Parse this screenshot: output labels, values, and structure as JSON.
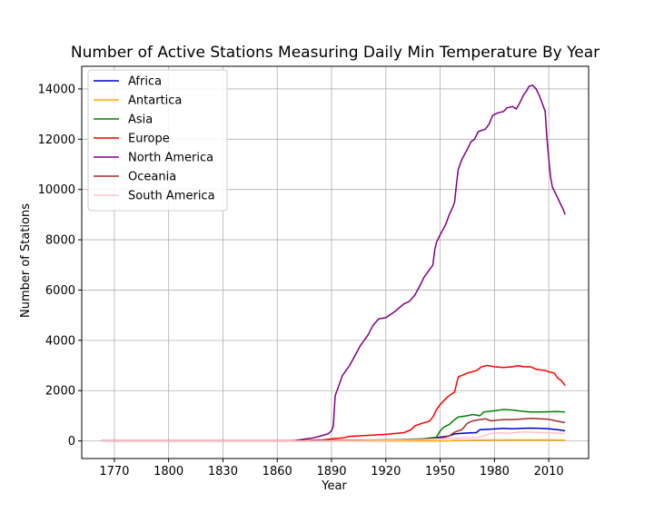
{
  "chart_data": {
    "type": "line",
    "title": "Number of Active Stations Measuring Daily Min Temperature By Year",
    "xlabel": "Year",
    "ylabel": "Number of Stations",
    "xlim": [
      1752,
      2032
    ],
    "ylim": [
      -700,
      14900
    ],
    "xticks": [
      1770,
      1800,
      1830,
      1860,
      1890,
      1920,
      1950,
      1980,
      2010
    ],
    "yticks": [
      0,
      2000,
      4000,
      6000,
      8000,
      10000,
      12000,
      14000
    ],
    "grid": true,
    "legend_position": "upper-left",
    "series": [
      {
        "name": "Africa",
        "color": "#0000cc",
        "points": [
          [
            1763,
            0
          ],
          [
            1870,
            0
          ],
          [
            1890,
            10
          ],
          [
            1920,
            30
          ],
          [
            1940,
            60
          ],
          [
            1945,
            100
          ],
          [
            1950,
            150
          ],
          [
            1955,
            200
          ],
          [
            1958,
            280
          ],
          [
            1962,
            300
          ],
          [
            1966,
            320
          ],
          [
            1970,
            330
          ],
          [
            1972,
            450
          ],
          [
            1978,
            470
          ],
          [
            1985,
            500
          ],
          [
            1990,
            480
          ],
          [
            1995,
            500
          ],
          [
            2000,
            510
          ],
          [
            2005,
            500
          ],
          [
            2010,
            480
          ],
          [
            2015,
            450
          ],
          [
            2019,
            400
          ]
        ]
      },
      {
        "name": "Antartica",
        "color": "#ffa500",
        "points": [
          [
            1763,
            0
          ],
          [
            1955,
            0
          ],
          [
            1957,
            20
          ],
          [
            1970,
            30
          ],
          [
            1980,
            35
          ],
          [
            1990,
            40
          ],
          [
            2000,
            40
          ],
          [
            2010,
            40
          ],
          [
            2019,
            30
          ]
        ]
      },
      {
        "name": "Asia",
        "color": "#008000",
        "points": [
          [
            1763,
            0
          ],
          [
            1880,
            0
          ],
          [
            1900,
            20
          ],
          [
            1920,
            40
          ],
          [
            1940,
            80
          ],
          [
            1948,
            150
          ],
          [
            1950,
            400
          ],
          [
            1952,
            550
          ],
          [
            1955,
            650
          ],
          [
            1958,
            850
          ],
          [
            1960,
            950
          ],
          [
            1965,
            1000
          ],
          [
            1968,
            1050
          ],
          [
            1972,
            1000
          ],
          [
            1974,
            1150
          ],
          [
            1980,
            1200
          ],
          [
            1985,
            1250
          ],
          [
            1990,
            1230
          ],
          [
            1995,
            1180
          ],
          [
            2000,
            1150
          ],
          [
            2005,
            1150
          ],
          [
            2010,
            1160
          ],
          [
            2015,
            1170
          ],
          [
            2019,
            1150
          ]
        ]
      },
      {
        "name": "Europe",
        "color": "#ff0000",
        "points": [
          [
            1763,
            0
          ],
          [
            1870,
            0
          ],
          [
            1885,
            40
          ],
          [
            1890,
            80
          ],
          [
            1896,
            120
          ],
          [
            1900,
            180
          ],
          [
            1910,
            220
          ],
          [
            1920,
            260
          ],
          [
            1930,
            330
          ],
          [
            1934,
            450
          ],
          [
            1936,
            600
          ],
          [
            1940,
            700
          ],
          [
            1944,
            780
          ],
          [
            1946,
            950
          ],
          [
            1948,
            1250
          ],
          [
            1950,
            1450
          ],
          [
            1952,
            1600
          ],
          [
            1954,
            1750
          ],
          [
            1956,
            1850
          ],
          [
            1958,
            1950
          ],
          [
            1960,
            2550
          ],
          [
            1962,
            2600
          ],
          [
            1965,
            2700
          ],
          [
            1970,
            2800
          ],
          [
            1973,
            2950
          ],
          [
            1976,
            3000
          ],
          [
            1980,
            2950
          ],
          [
            1985,
            2920
          ],
          [
            1990,
            2950
          ],
          [
            1993,
            2990
          ],
          [
            1996,
            2950
          ],
          [
            2000,
            2950
          ],
          [
            2003,
            2850
          ],
          [
            2006,
            2820
          ],
          [
            2008,
            2800
          ],
          [
            2010,
            2750
          ],
          [
            2013,
            2700
          ],
          [
            2015,
            2500
          ],
          [
            2017,
            2400
          ],
          [
            2019,
            2200
          ]
        ]
      },
      {
        "name": "North America",
        "color": "#800080",
        "points": [
          [
            1763,
            0
          ],
          [
            1868,
            0
          ],
          [
            1872,
            40
          ],
          [
            1876,
            80
          ],
          [
            1880,
            120
          ],
          [
            1884,
            200
          ],
          [
            1888,
            280
          ],
          [
            1890,
            400
          ],
          [
            1891,
            600
          ],
          [
            1892,
            1800
          ],
          [
            1894,
            2200
          ],
          [
            1896,
            2600
          ],
          [
            1900,
            3000
          ],
          [
            1903,
            3400
          ],
          [
            1906,
            3800
          ],
          [
            1910,
            4200
          ],
          [
            1913,
            4600
          ],
          [
            1916,
            4850
          ],
          [
            1920,
            4900
          ],
          [
            1925,
            5150
          ],
          [
            1930,
            5450
          ],
          [
            1933,
            5550
          ],
          [
            1936,
            5800
          ],
          [
            1939,
            6200
          ],
          [
            1941,
            6500
          ],
          [
            1944,
            6800
          ],
          [
            1946,
            7000
          ],
          [
            1947,
            7600
          ],
          [
            1948,
            7900
          ],
          [
            1950,
            8200
          ],
          [
            1953,
            8600
          ],
          [
            1955,
            9000
          ],
          [
            1957,
            9300
          ],
          [
            1958,
            9500
          ],
          [
            1959,
            10200
          ],
          [
            1960,
            10800
          ],
          [
            1962,
            11200
          ],
          [
            1965,
            11600
          ],
          [
            1967,
            11900
          ],
          [
            1969,
            12000
          ],
          [
            1971,
            12300
          ],
          [
            1975,
            12400
          ],
          [
            1977,
            12600
          ],
          [
            1979,
            12950
          ],
          [
            1982,
            13050
          ],
          [
            1985,
            13100
          ],
          [
            1987,
            13250
          ],
          [
            1990,
            13300
          ],
          [
            1992,
            13200
          ],
          [
            1994,
            13450
          ],
          [
            1996,
            13750
          ],
          [
            1998,
            13950
          ],
          [
            1999,
            14100
          ],
          [
            2001,
            14150
          ],
          [
            2003,
            14000
          ],
          [
            2005,
            13700
          ],
          [
            2007,
            13300
          ],
          [
            2008,
            13100
          ],
          [
            2009,
            12000
          ],
          [
            2010,
            11200
          ],
          [
            2011,
            10500
          ],
          [
            2012,
            10100
          ],
          [
            2014,
            9800
          ],
          [
            2016,
            9500
          ],
          [
            2018,
            9200
          ],
          [
            2019,
            9000
          ]
        ]
      },
      {
        "name": "Oceania",
        "color": "#a52a2a",
        "points": [
          [
            1763,
            0
          ],
          [
            1860,
            0
          ],
          [
            1880,
            20
          ],
          [
            1900,
            30
          ],
          [
            1920,
            40
          ],
          [
            1940,
            60
          ],
          [
            1950,
            100
          ],
          [
            1955,
            200
          ],
          [
            1958,
            350
          ],
          [
            1962,
            450
          ],
          [
            1965,
            700
          ],
          [
            1968,
            800
          ],
          [
            1972,
            850
          ],
          [
            1975,
            880
          ],
          [
            1978,
            800
          ],
          [
            1982,
            830
          ],
          [
            1985,
            850
          ],
          [
            1990,
            850
          ],
          [
            1995,
            870
          ],
          [
            2000,
            900
          ],
          [
            2005,
            880
          ],
          [
            2010,
            860
          ],
          [
            2015,
            780
          ],
          [
            2019,
            730
          ]
        ]
      },
      {
        "name": "South America",
        "color": "#ffc0cb",
        "points": [
          [
            1763,
            0
          ],
          [
            1880,
            0
          ],
          [
            1900,
            10
          ],
          [
            1920,
            30
          ],
          [
            1940,
            50
          ],
          [
            1950,
            80
          ],
          [
            1958,
            100
          ],
          [
            1963,
            120
          ],
          [
            1970,
            130
          ],
          [
            1974,
            200
          ],
          [
            1978,
            300
          ],
          [
            1982,
            330
          ],
          [
            1988,
            300
          ],
          [
            1992,
            340
          ],
          [
            1996,
            360
          ],
          [
            2000,
            350
          ],
          [
            2005,
            330
          ],
          [
            2010,
            330
          ],
          [
            2015,
            310
          ],
          [
            2019,
            290
          ]
        ]
      }
    ]
  }
}
